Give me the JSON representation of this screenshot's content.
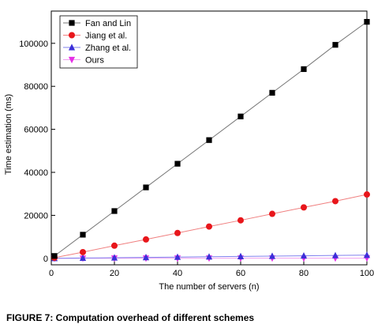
{
  "chart_data": {
    "type": "line",
    "xlabel": "The number of servers (n)",
    "ylabel": "Time estimation (ms)",
    "xlim": [
      0,
      100
    ],
    "ylim": [
      -3000,
      115000
    ],
    "x_ticks": [
      0,
      20,
      40,
      60,
      80,
      100
    ],
    "y_ticks": [
      0,
      20000,
      40000,
      60000,
      80000,
      100000
    ],
    "grid": false,
    "legend_position": "top-left",
    "x": [
      1,
      10,
      20,
      30,
      40,
      50,
      60,
      70,
      80,
      90,
      100
    ],
    "series": [
      {
        "name": "Fan and Lin",
        "marker": "square",
        "color": "#000000",
        "line_color": "#777777",
        "values": [
          1100,
          11000,
          22000,
          33000,
          44000,
          55000,
          66000,
          77000,
          88000,
          99300,
          110000
        ]
      },
      {
        "name": "Jiang et al.",
        "marker": "circle",
        "color": "#e8161b",
        "line_color": "#f08080",
        "values": [
          300,
          2900,
          5900,
          8800,
          11800,
          14800,
          17700,
          20700,
          23700,
          26600,
          29700
        ]
      },
      {
        "name": "Zhang et al.",
        "marker": "triangle-up",
        "color": "#3b2fd8",
        "line_color": "#8080ee",
        "values": [
          20,
          150,
          300,
          450,
          600,
          750,
          900,
          1050,
          1200,
          1350,
          1500
        ]
      },
      {
        "name": "Ours",
        "marker": "triangle-down",
        "color": "#e62ee6",
        "line_color": "#f0a0f0",
        "values": [
          5,
          10,
          20,
          30,
          40,
          50,
          60,
          70,
          80,
          90,
          100
        ]
      }
    ]
  },
  "caption": "FIGURE 7: Computation overhead of different schemes"
}
